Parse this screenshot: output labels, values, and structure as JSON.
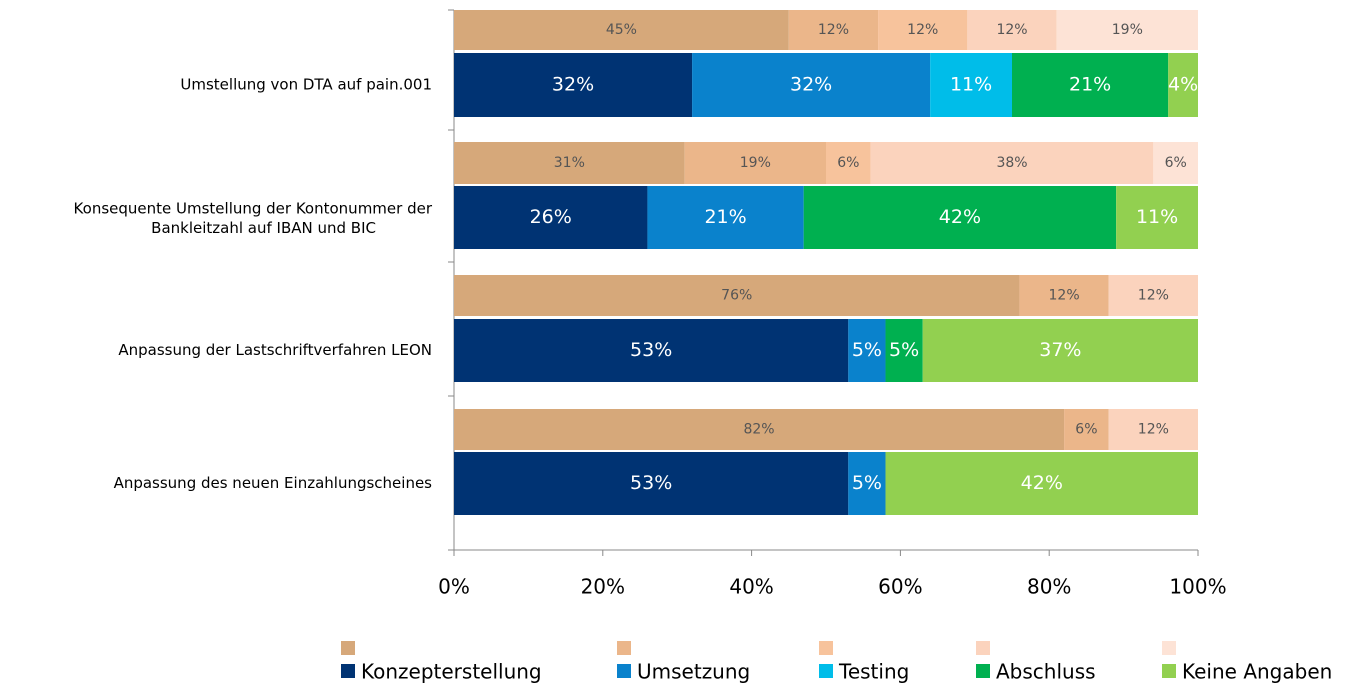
{
  "chart_data": {
    "type": "bar",
    "orientation": "horizontal",
    "stacked": true,
    "categories": [
      "Umstellung von DTA auf pain.001",
      "Konsequente Umstellung der Kontonummer der Bankleitzahl auf IBAN und BIC",
      "Anpassung der Lastschriftverfahren LEON",
      "Anpassung des neuen Einzahlungscheines"
    ],
    "xlim": [
      0,
      100
    ],
    "xticks": [
      {
        "value": 0,
        "label": "0%"
      },
      {
        "value": 20,
        "label": "20%"
      },
      {
        "value": 40,
        "label": "40%"
      },
      {
        "value": 60,
        "label": "60%"
      },
      {
        "value": 80,
        "label": "80%"
      },
      {
        "value": 100,
        "label": "100%"
      }
    ],
    "upper_series": [
      {
        "color": "#d6a87a",
        "values": [
          45,
          31,
          76,
          82
        ],
        "value_labels": [
          "45%",
          "31%",
          "76%",
          "82%"
        ]
      },
      {
        "color": "#ebb68a",
        "values": [
          12,
          19,
          12,
          6
        ],
        "value_labels": [
          "12%",
          "19%",
          "12%",
          "6%"
        ]
      },
      {
        "color": "#f7c39c",
        "values": [
          12,
          6,
          null,
          null
        ],
        "value_labels": [
          "12%",
          "6%",
          null,
          null
        ]
      },
      {
        "color": "#fbd3bd",
        "values": [
          12,
          38,
          12,
          12
        ],
        "value_labels": [
          "12%",
          "38%",
          "12%",
          "12%"
        ]
      },
      {
        "color": "#fde3d6",
        "values": [
          19,
          6,
          null,
          null
        ],
        "value_labels": [
          "19%",
          "6%",
          null,
          null
        ]
      }
    ],
    "series": [
      {
        "name": "Konzepterstellung",
        "color": "#003373",
        "values": [
          32,
          26,
          53,
          53
        ],
        "value_labels": [
          "32%",
          "26%",
          "53%",
          "53%"
        ]
      },
      {
        "name": "Umsetzung",
        "color": "#0a82cc",
        "values": [
          32,
          21,
          5,
          5
        ],
        "value_labels": [
          "32%",
          "21%",
          "5%",
          "5%"
        ]
      },
      {
        "name": "Testing",
        "color": "#00bde9",
        "values": [
          11,
          null,
          null,
          null
        ],
        "value_labels": [
          "11%",
          null,
          null,
          null
        ]
      },
      {
        "name": "Abschluss",
        "color": "#00b050",
        "values": [
          21,
          42,
          5,
          null
        ],
        "value_labels": [
          "21%",
          "42%",
          "5%",
          null
        ]
      },
      {
        "name": "Keine Angaben",
        "color": "#92d050",
        "values": [
          4,
          11,
          37,
          42
        ],
        "value_labels": [
          "4%",
          "11%",
          "37%",
          "42%"
        ]
      }
    ]
  }
}
